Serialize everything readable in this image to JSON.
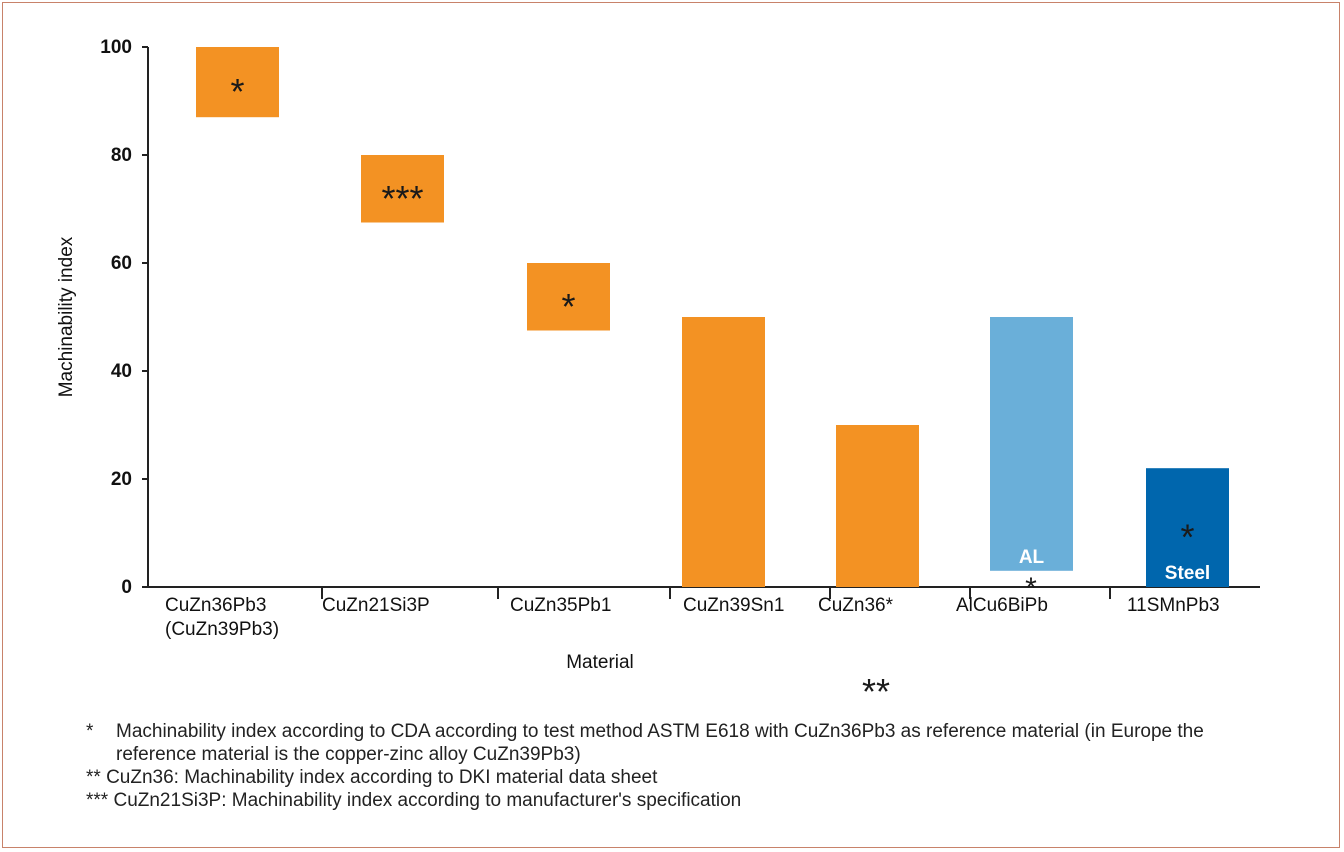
{
  "chart_data": {
    "type": "bar",
    "xlabel": "Material",
    "ylabel": "Machinability index",
    "ylim": [
      0,
      100
    ],
    "y_ticks": [
      "0",
      "20",
      "40",
      "60",
      "80",
      "100"
    ],
    "grid": false,
    "categories": [
      {
        "lines": [
          "CuZn36Pb3",
          "(CuZn39Pb3)"
        ],
        "align": "left"
      },
      {
        "lines": [
          "CuZn21Si3P"
        ],
        "align": "left"
      },
      {
        "lines": [
          "CuZn35Pb1"
        ],
        "align": "left"
      },
      {
        "lines": [
          "CuZn39Sn1"
        ],
        "align": "left"
      },
      {
        "lines": [
          "CuZn36*"
        ],
        "align": "left"
      },
      {
        "lines": [
          "AlCu6BiPb"
        ],
        "align": "left"
      },
      {
        "lines": [
          "11SMnPb3"
        ],
        "align": "left"
      }
    ],
    "bars": [
      {
        "low": 87,
        "high": 100,
        "color": "#f39223",
        "mark": "*",
        "label": ""
      },
      {
        "low": 67.5,
        "high": 80,
        "color": "#f39223",
        "mark": "***",
        "label": ""
      },
      {
        "low": 47.5,
        "high": 60,
        "color": "#f39223",
        "mark": "*",
        "label": ""
      },
      {
        "low": 0,
        "high": 50,
        "color": "#f39223",
        "mark": "",
        "label": ""
      },
      {
        "low": 0,
        "high": 30,
        "color": "#f39223",
        "mark": "",
        "label": ""
      },
      {
        "low": 3,
        "high": 50,
        "color": "#6aafd9",
        "mark": "",
        "label": "AL"
      },
      {
        "low": 0,
        "high": 22,
        "color": "#0066ad",
        "mark": "*",
        "label": "Steel"
      }
    ],
    "annotations": {
      "below_alcu": "*",
      "double_star": "**"
    }
  },
  "footnotes": [
    {
      "mark": "*",
      "text": "Machinability index according to CDA according to test method ASTM E618 with CuZn36Pb3 as reference material (in Europe the reference material is the copper-zinc alloy CuZn39Pb3)"
    },
    {
      "mark": "**",
      "text": "CuZn36: Machinability index according to DKI material data sheet"
    },
    {
      "mark": "***",
      "text": "CuZn21Si3P: Machinability index according to manufacturer's specification"
    }
  ]
}
